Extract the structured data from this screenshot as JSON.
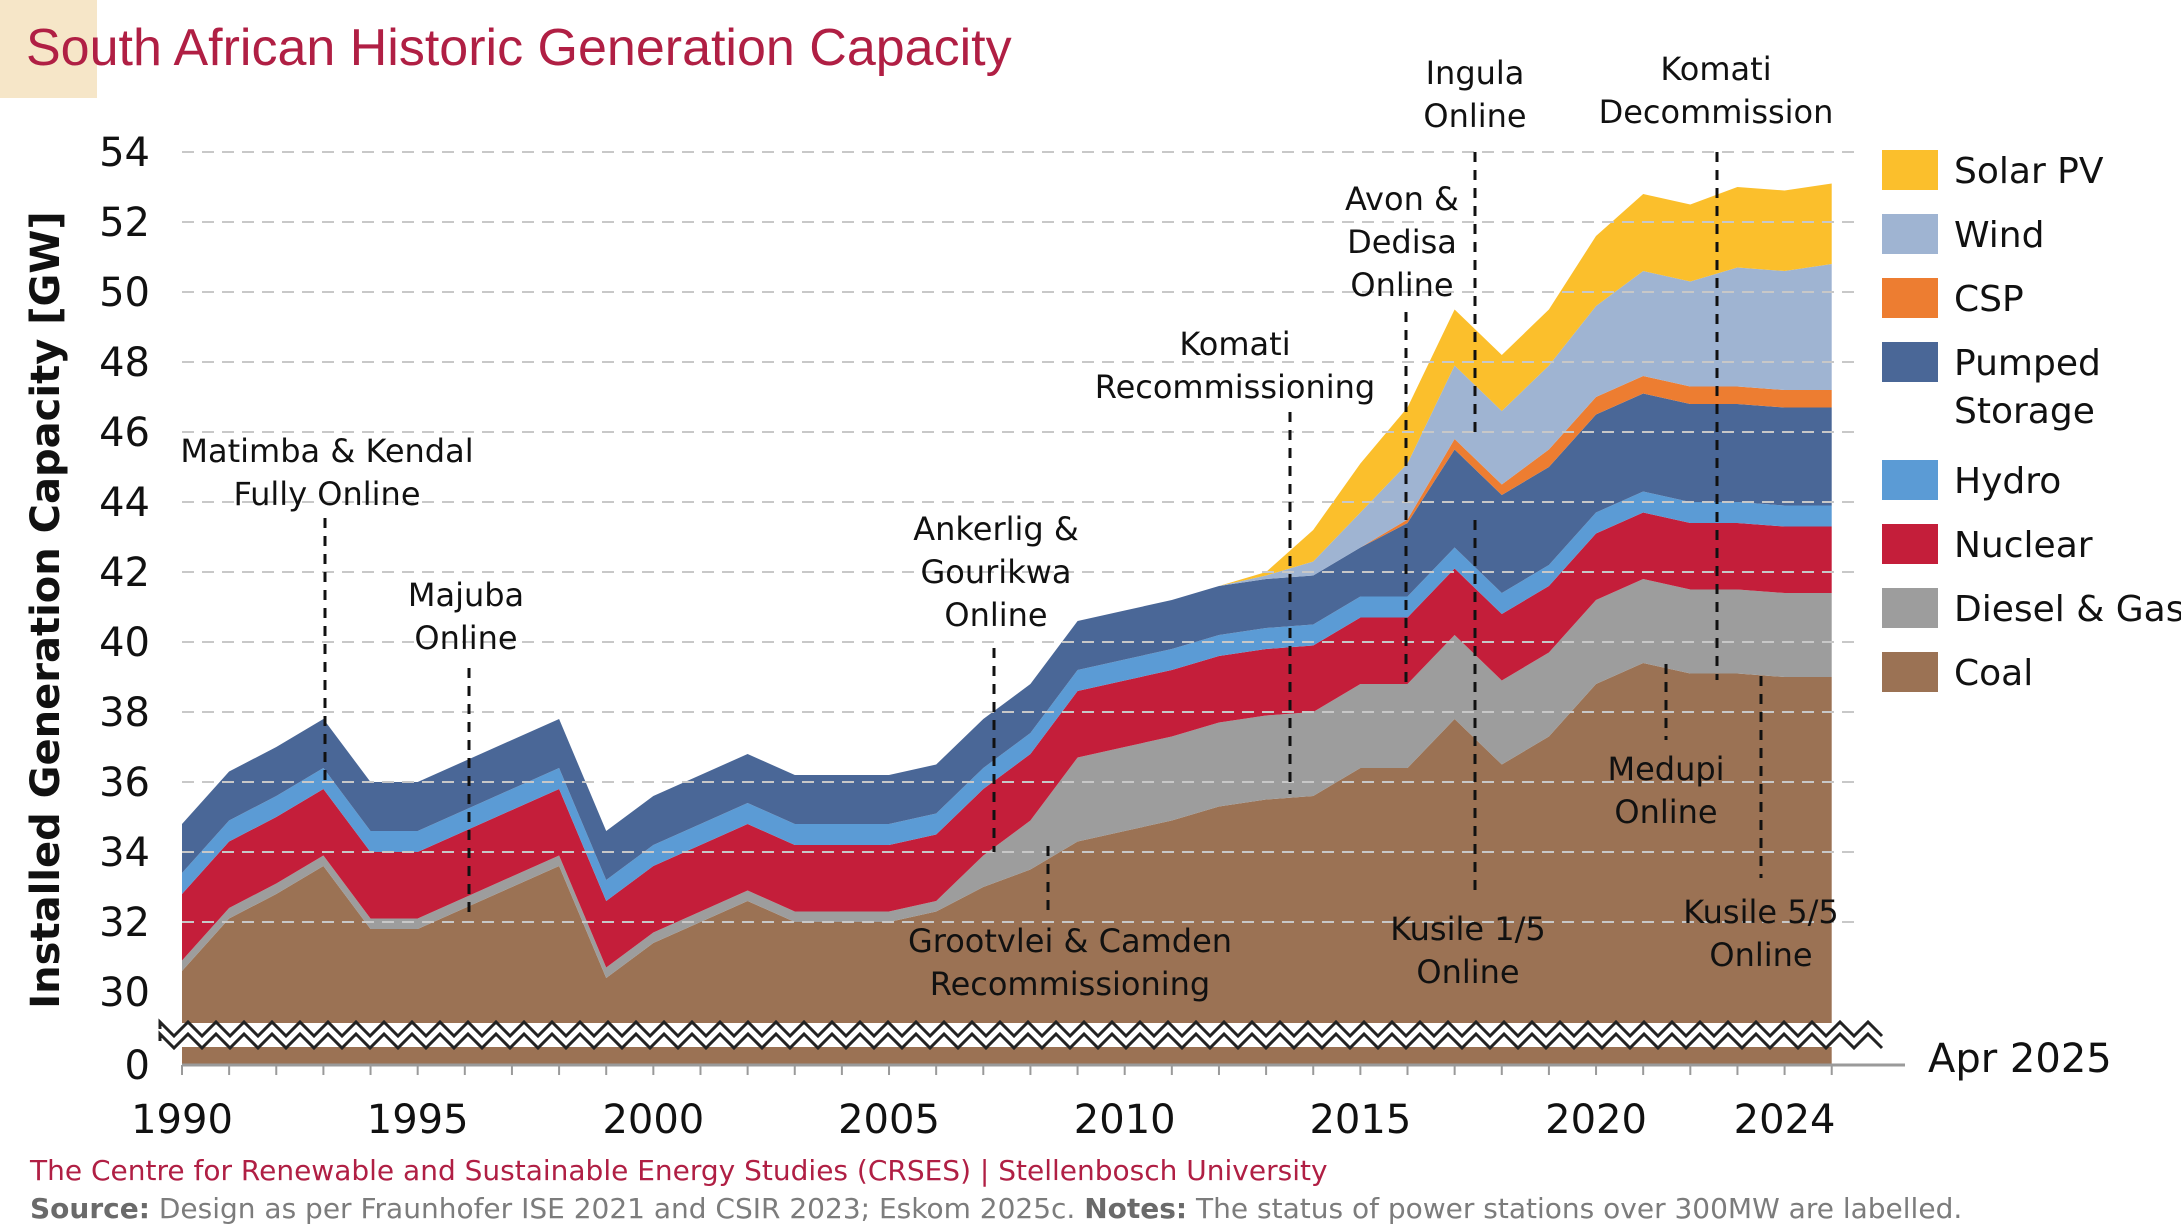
{
  "title": "South African Historic Generation Capacity",
  "footer": {
    "org": "The Centre for Renewable and Sustainable Energy Studies (CRSES) | Stellenbosch University",
    "source_label": "Source:",
    "source_text": " Design as per Fraunhofer ISE 2021 and CSIR 2023; Eskom 2025c. ",
    "notes_label": "Notes:",
    "notes_text": " The status of power stations over 300MW are labelled."
  },
  "as_of_label": "Apr 2025",
  "colors": {
    "title": "#b01f44",
    "grid": "#c8c8c8"
  },
  "chart_data": {
    "type": "area",
    "stacked": true,
    "title": "South African Historic Generation Capacity",
    "ylabel": "Installed Generation Capacity [GW]",
    "xlabel": "",
    "x": [
      1990,
      1991,
      1992,
      1993,
      1994,
      1995,
      1996,
      1997,
      1998,
      1999,
      2000,
      2001,
      2002,
      2003,
      2004,
      2005,
      2006,
      2007,
      2008,
      2009,
      2010,
      2011,
      2012,
      2013,
      2014,
      2015,
      2016,
      2017,
      2018,
      2019,
      2020,
      2021,
      2022,
      2023,
      2024,
      2025
    ],
    "xticks": [
      1990,
      1995,
      2000,
      2005,
      2010,
      2015,
      2020,
      2024
    ],
    "xtick_labels": [
      "1990",
      "1995",
      "2000",
      "2005",
      "2010",
      "2015",
      "2020",
      "2024"
    ],
    "xlim": [
      1990,
      2025.6
    ],
    "ylim": [
      30,
      54
    ],
    "yticks": [
      0,
      30,
      32,
      34,
      36,
      38,
      40,
      42,
      44,
      46,
      48,
      50,
      52,
      54
    ],
    "ytick_labels": [
      "0",
      "30",
      "32",
      "34",
      "36",
      "38",
      "40",
      "42",
      "44",
      "46",
      "48",
      "50",
      "52",
      "54"
    ],
    "axis_break": true,
    "grid": true,
    "legend_position": "right",
    "series": [
      {
        "name": "Coal",
        "color": "#9b7254",
        "values": [
          30.6,
          32.1,
          32.8,
          33.6,
          31.8,
          31.8,
          32.4,
          33.0,
          33.6,
          30.4,
          31.4,
          32.0,
          32.6,
          32.0,
          32.0,
          32.0,
          32.3,
          33.0,
          33.5,
          34.3,
          34.6,
          34.9,
          35.3,
          35.5,
          35.6,
          36.4,
          36.4,
          37.8,
          36.5,
          37.3,
          38.8,
          39.4,
          39.1,
          39.1,
          39.0,
          39.0
        ]
      },
      {
        "name": "Diesel & Gas",
        "color": "#9d9d9d",
        "values": [
          0.3,
          0.3,
          0.3,
          0.3,
          0.3,
          0.3,
          0.3,
          0.3,
          0.3,
          0.3,
          0.3,
          0.3,
          0.3,
          0.3,
          0.3,
          0.3,
          0.3,
          0.9,
          1.4,
          2.4,
          2.4,
          2.4,
          2.4,
          2.4,
          2.4,
          2.4,
          2.4,
          2.4,
          2.4,
          2.4,
          2.4,
          2.4,
          2.4,
          2.4,
          2.4,
          2.4
        ]
      },
      {
        "name": "Nuclear",
        "color": "#c41e3a",
        "values": [
          1.9,
          1.9,
          1.9,
          1.9,
          1.9,
          1.9,
          1.9,
          1.9,
          1.9,
          1.9,
          1.9,
          1.9,
          1.9,
          1.9,
          1.9,
          1.9,
          1.9,
          1.9,
          1.9,
          1.9,
          1.9,
          1.9,
          1.9,
          1.9,
          1.9,
          1.9,
          1.9,
          1.9,
          1.9,
          1.9,
          1.9,
          1.9,
          1.9,
          1.9,
          1.9,
          1.9
        ]
      },
      {
        "name": "Hydro",
        "color": "#5b9bd5",
        "values": [
          0.6,
          0.6,
          0.6,
          0.6,
          0.6,
          0.6,
          0.6,
          0.6,
          0.6,
          0.6,
          0.6,
          0.6,
          0.6,
          0.6,
          0.6,
          0.6,
          0.6,
          0.6,
          0.6,
          0.6,
          0.6,
          0.6,
          0.6,
          0.6,
          0.6,
          0.6,
          0.6,
          0.6,
          0.6,
          0.6,
          0.6,
          0.6,
          0.6,
          0.6,
          0.6,
          0.6
        ]
      },
      {
        "name": "Pumped Storage",
        "color": "#4a6797",
        "values": [
          1.4,
          1.4,
          1.4,
          1.4,
          1.4,
          1.4,
          1.4,
          1.4,
          1.4,
          1.4,
          1.4,
          1.4,
          1.4,
          1.4,
          1.4,
          1.4,
          1.4,
          1.4,
          1.4,
          1.4,
          1.4,
          1.4,
          1.4,
          1.4,
          1.4,
          1.4,
          2.1,
          2.8,
          2.8,
          2.8,
          2.8,
          2.8,
          2.8,
          2.8,
          2.8,
          2.8
        ]
      },
      {
        "name": "CSP",
        "color": "#ed7d31",
        "values": [
          0,
          0,
          0,
          0,
          0,
          0,
          0,
          0,
          0,
          0,
          0,
          0,
          0,
          0,
          0,
          0,
          0,
          0,
          0,
          0,
          0,
          0,
          0,
          0,
          0,
          0,
          0.1,
          0.3,
          0.3,
          0.5,
          0.5,
          0.5,
          0.5,
          0.5,
          0.5,
          0.5
        ]
      },
      {
        "name": "Wind",
        "color": "#9fb4d2",
        "values": [
          0,
          0,
          0,
          0,
          0,
          0,
          0,
          0,
          0,
          0,
          0,
          0,
          0,
          0,
          0,
          0,
          0,
          0,
          0,
          0,
          0,
          0,
          0,
          0.1,
          0.4,
          1.0,
          1.6,
          2.1,
          2.1,
          2.4,
          2.6,
          3.0,
          3.0,
          3.4,
          3.4,
          3.6
        ]
      },
      {
        "name": "Solar PV",
        "color": "#fbbf2c",
        "values": [
          0,
          0,
          0,
          0,
          0,
          0,
          0,
          0,
          0,
          0,
          0,
          0,
          0,
          0,
          0,
          0,
          0,
          0,
          0,
          0,
          0,
          0,
          0,
          0.1,
          0.9,
          1.4,
          1.6,
          1.6,
          1.6,
          1.6,
          2.0,
          2.2,
          2.2,
          2.3,
          2.3,
          2.3
        ]
      }
    ],
    "annotations": [
      {
        "label": [
          "Matimba & Kendal",
          "Fully Online"
        ],
        "year": 1993
      },
      {
        "label": [
          "Majuba",
          "Online"
        ],
        "year": 1996
      },
      {
        "label": [
          "Ankerlig &",
          "Gourikwa",
          "Online"
        ],
        "year": 2007
      },
      {
        "label": [
          "Grootvlei & Camden",
          "Recommissioning"
        ],
        "year": 2008
      },
      {
        "label": [
          "Komati",
          "Recommissioning"
        ],
        "year": 2013
      },
      {
        "label": [
          "Avon &",
          "Dedisa",
          "Online"
        ],
        "year": 2015.6
      },
      {
        "label": [
          "Ingula",
          "Online"
        ],
        "year": 2017
      },
      {
        "label": [
          "Kusile 1/5",
          "Online"
        ],
        "year": 2017
      },
      {
        "label": [
          "Medupi",
          "Online"
        ],
        "year": 2021
      },
      {
        "label": [
          "Komati",
          "Decommission"
        ],
        "year": 2022.2
      },
      {
        "label": [
          "Kusile 5/5",
          "Online"
        ],
        "year": 2023.9
      }
    ]
  }
}
